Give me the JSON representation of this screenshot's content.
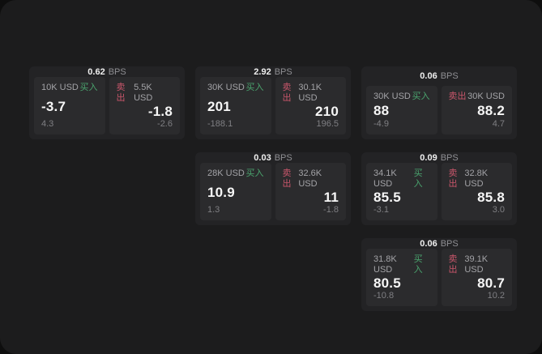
{
  "page": {
    "bps_suffix": "BPS",
    "buy_label": "买入",
    "sell_label": "卖出"
  },
  "colors": {
    "background": "#0e0e0e",
    "panel": "#1c1c1d",
    "card": "#232325",
    "tile": "#2b2b2d",
    "buy_green": "#4aa46e",
    "sell_red": "#c9566b",
    "text_primary": "#f6f6f6",
    "text_muted": "#8f8f93"
  },
  "cards": [
    {
      "bps": "0.62",
      "buy": {
        "amount": "10K USD",
        "price": "-3.7",
        "change": "4.3"
      },
      "sell": {
        "amount": "5.5K USD",
        "price": "-1.8",
        "change": "-2.6"
      }
    },
    {
      "bps": "2.92",
      "buy": {
        "amount": "30K USD",
        "price": "201",
        "change": "-188.1"
      },
      "sell": {
        "amount": "30.1K USD",
        "price": "210",
        "change": "196.5"
      }
    },
    {
      "bps": "0.06",
      "buy": {
        "amount": "30K USD",
        "price": "88",
        "change": "-4.9"
      },
      "sell": {
        "amount": "30K USD",
        "price": "88.2",
        "change": "4.7"
      }
    },
    {
      "bps": "0.03",
      "buy": {
        "amount": "28K USD",
        "price": "10.9",
        "change": "1.3"
      },
      "sell": {
        "amount": "32.6K USD",
        "price": "11",
        "change": "-1.8"
      }
    },
    {
      "bps": "0.09",
      "buy": {
        "amount": "34.1K USD",
        "price": "85.5",
        "change": "-3.1"
      },
      "sell": {
        "amount": "32.8K USD",
        "price": "85.8",
        "change": "3.0"
      }
    },
    {
      "bps": "0.06",
      "buy": {
        "amount": "31.8K USD",
        "price": "80.5",
        "change": "-10.8"
      },
      "sell": {
        "amount": "39.1K USD",
        "price": "80.7",
        "change": "10.2"
      }
    }
  ]
}
